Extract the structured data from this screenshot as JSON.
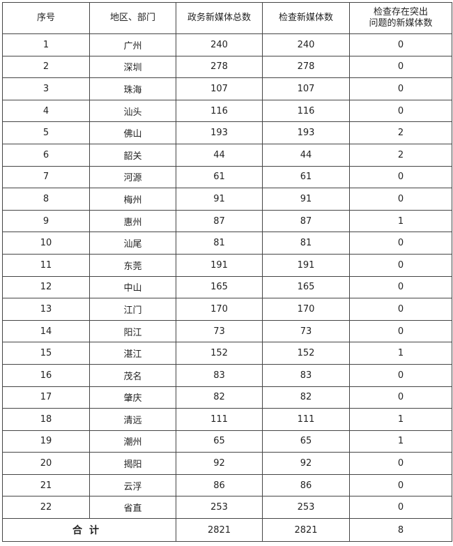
{
  "table": {
    "headers": [
      "序号",
      "地区、部门",
      "政务新媒体总数",
      "检查新媒体数",
      "检查存在突出问题的新媒体数"
    ],
    "header_last_lines": [
      "检查存在突出",
      "问题的新媒体数"
    ],
    "rows": [
      [
        "1",
        "广州",
        "240",
        "240",
        "0"
      ],
      [
        "2",
        "深圳",
        "278",
        "278",
        "0"
      ],
      [
        "3",
        "珠海",
        "107",
        "107",
        "0"
      ],
      [
        "4",
        "汕头",
        "116",
        "116",
        "0"
      ],
      [
        "5",
        "佛山",
        "193",
        "193",
        "2"
      ],
      [
        "6",
        "韶关",
        "44",
        "44",
        "2"
      ],
      [
        "7",
        "河源",
        "61",
        "61",
        "0"
      ],
      [
        "8",
        "梅州",
        "91",
        "91",
        "0"
      ],
      [
        "9",
        "惠州",
        "87",
        "87",
        "1"
      ],
      [
        "10",
        "汕尾",
        "81",
        "81",
        "0"
      ],
      [
        "11",
        "东莞",
        "191",
        "191",
        "0"
      ],
      [
        "12",
        "中山",
        "165",
        "165",
        "0"
      ],
      [
        "13",
        "江门",
        "170",
        "170",
        "0"
      ],
      [
        "14",
        "阳江",
        "73",
        "73",
        "0"
      ],
      [
        "15",
        "湛江",
        "152",
        "152",
        "1"
      ],
      [
        "16",
        "茂名",
        "83",
        "83",
        "0"
      ],
      [
        "17",
        "肇庆",
        "82",
        "82",
        "0"
      ],
      [
        "18",
        "清远",
        "111",
        "111",
        "1"
      ],
      [
        "19",
        "潮州",
        "65",
        "65",
        "1"
      ],
      [
        "20",
        "揭阳",
        "92",
        "92",
        "0"
      ],
      [
        "21",
        "云浮",
        "86",
        "86",
        "0"
      ],
      [
        "22",
        "省直",
        "253",
        "253",
        "0"
      ]
    ],
    "total": {
      "label": "合计",
      "values": [
        "2821",
        "2821",
        "8"
      ]
    }
  }
}
